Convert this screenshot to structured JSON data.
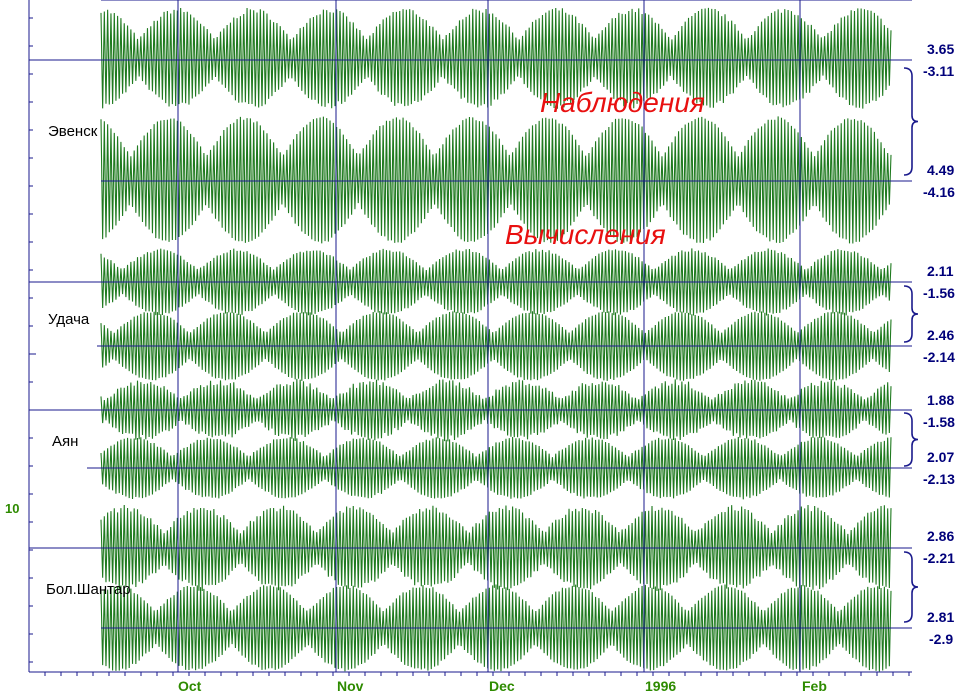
{
  "chart_data": {
    "type": "line",
    "title": "",
    "annotations": {
      "observed": "Наблюдения",
      "computed": "Вычисления"
    },
    "x_ticks": [
      "Oct",
      "Nov",
      "Dec",
      "1996",
      "Feb"
    ],
    "y_tick_label": "10",
    "colors": {
      "series": "#1f7a1f",
      "grid": "#1a1a8c",
      "values": "#00007a",
      "annotation": "#e81010",
      "axis_text": "#2e8b00"
    },
    "stations": [
      {
        "name": "Эвенск",
        "observed": {
          "max": "3.65",
          "min": "-3.11"
        },
        "computed": {
          "max": "4.49",
          "min": "-4.16"
        }
      },
      {
        "name": "Удача",
        "observed": {
          "max": "2.11",
          "min": "-1.56"
        },
        "computed": {
          "max": "2.46",
          "min": "-2.14"
        }
      },
      {
        "name": "Аян",
        "observed": {
          "max": "1.88",
          "min": "-1.58"
        },
        "computed": {
          "max": "2.07",
          "min": "-2.13"
        }
      },
      {
        "name": "Бол.Шантар",
        "observed": {
          "max": "2.86",
          "min": "-2.21"
        },
        "computed": {
          "max": "2.81",
          "min": "-2.9"
        }
      }
    ]
  }
}
